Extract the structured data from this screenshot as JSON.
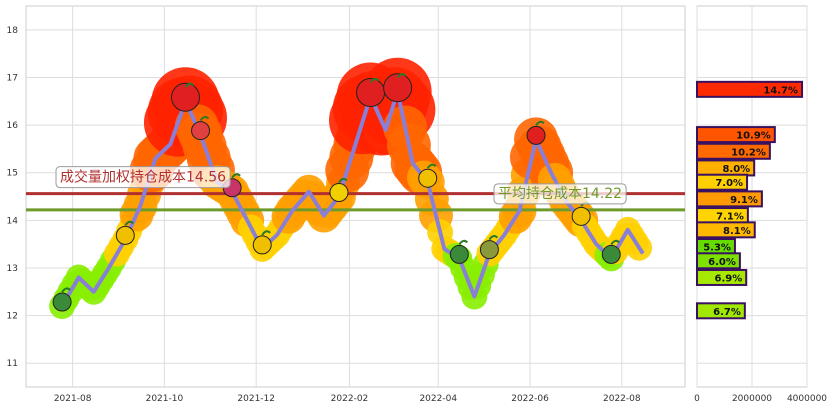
{
  "chart_data": [
    {
      "type": "line",
      "x_ticks": [
        "2021-08",
        "2021-10",
        "2021-12",
        "2022-02",
        "2022-04",
        "2022-06",
        "2022-08"
      ],
      "y_ticks": [
        "11",
        "12",
        "13",
        "14",
        "15",
        "16",
        "17",
        "18"
      ],
      "ylim": [
        10.5,
        18.5
      ],
      "grid": true,
      "series": [
        {
          "color": "#8a7fd8",
          "x": [
            "2021-07-25",
            "2021-08-05",
            "2021-08-15",
            "2021-08-25",
            "2021-09-05",
            "2021-09-15",
            "2021-09-25",
            "2021-10-05",
            "2021-10-15",
            "2021-10-25",
            "2021-11-05",
            "2021-11-15",
            "2021-11-25",
            "2021-12-05",
            "2021-12-15",
            "2021-12-25",
            "2022-01-05",
            "2022-01-15",
            "2022-01-25",
            "2022-02-05",
            "2022-02-15",
            "2022-02-25",
            "2022-03-05",
            "2022-03-15",
            "2022-03-25",
            "2022-04-05",
            "2022-04-15",
            "2022-04-25",
            "2022-05-05",
            "2022-05-15",
            "2022-05-25",
            "2022-06-05",
            "2022-06-15",
            "2022-06-25",
            "2022-07-05",
            "2022-07-15",
            "2022-07-25",
            "2022-08-05",
            "2022-08-15"
          ],
          "y": [
            12.2,
            12.8,
            12.5,
            13.0,
            13.6,
            14.3,
            15.3,
            15.6,
            16.5,
            15.8,
            14.8,
            14.6,
            14.0,
            13.4,
            13.7,
            14.2,
            14.6,
            14.1,
            14.5,
            15.6,
            16.6,
            15.9,
            16.7,
            15.2,
            14.8,
            13.4,
            13.2,
            12.4,
            13.3,
            13.7,
            14.2,
            15.7,
            15.0,
            14.4,
            14.0,
            13.5,
            13.2,
            13.8,
            13.3
          ]
        }
      ],
      "reference_lines": [
        {
          "label": "成交量加权持仓成本",
          "label_text": "成交量加权持仓成本14.56",
          "value": 14.56,
          "color": "#b03030"
        },
        {
          "label": "平均持仓成本",
          "label_text": "平均持仓成本14.22",
          "value": 14.22,
          "color": "#6e9a2a"
        }
      ]
    },
    {
      "type": "bar",
      "orientation": "horizontal",
      "x_ticks": [
        "0",
        "2000000",
        "4000000"
      ],
      "xlim": [
        0,
        4000000
      ],
      "bars": [
        {
          "price": 16.75,
          "value": 3820000,
          "label": "14.7%",
          "color": "#ff2a00"
        },
        {
          "price": 15.8,
          "value": 2830000,
          "label": "10.9%",
          "color": "#ff5500"
        },
        {
          "price": 15.45,
          "value": 2650000,
          "label": "10.2%",
          "color": "#ff6a00"
        },
        {
          "price": 15.1,
          "value": 2080000,
          "label": "8.0%",
          "color": "#ffb000"
        },
        {
          "price": 14.8,
          "value": 1820000,
          "label": "7.0%",
          "color": "#ffd000"
        },
        {
          "price": 14.45,
          "value": 2360000,
          "label": "9.1%",
          "color": "#ff9a00"
        },
        {
          "price": 14.1,
          "value": 1850000,
          "label": "7.1%",
          "color": "#ffd400"
        },
        {
          "price": 13.8,
          "value": 2100000,
          "label": "8.1%",
          "color": "#ffb800"
        },
        {
          "price": 13.45,
          "value": 1380000,
          "label": "5.3%",
          "color": "#66dd00"
        },
        {
          "price": 13.15,
          "value": 1560000,
          "label": "6.0%",
          "color": "#7ee000"
        },
        {
          "price": 12.8,
          "value": 1790000,
          "label": "6.9%",
          "color": "#a6e800"
        },
        {
          "price": 12.1,
          "value": 1740000,
          "label": "6.7%",
          "color": "#a0e800"
        }
      ]
    }
  ]
}
